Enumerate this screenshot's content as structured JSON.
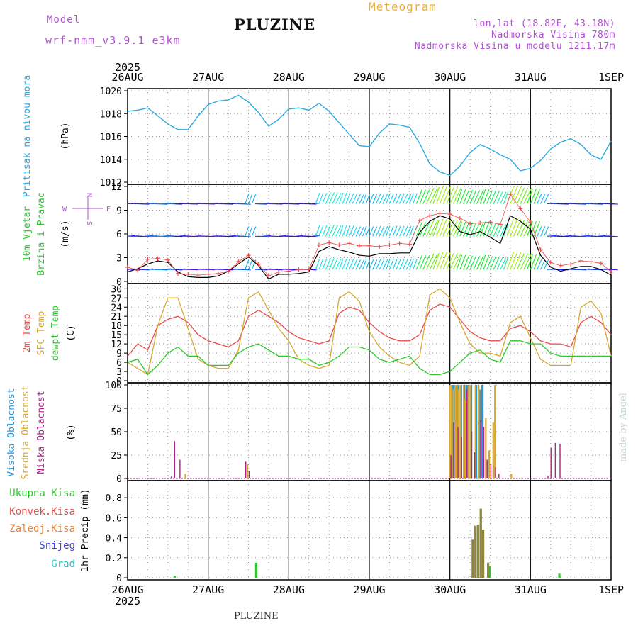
{
  "header": {
    "model_label": "Model",
    "model_value": "wrf-nmm_v3.9.1  e3km",
    "station": "PLUZINE",
    "meteogram_label": "Meteogram",
    "lonlat": "lon,lat (18.82E, 43.18N)",
    "elevation": "Nadmorska Visina 780m",
    "model_elevation": "Nadmorska Visina u modelu 1211.17m",
    "bottom_station": "PLUZINE",
    "credit": "made by Angel"
  },
  "colors": {
    "pressure": "#2aa8e0",
    "temp2m": "#e84c4c",
    "sfc_temp": "#d8a830",
    "dewpoint": "#2cc82c",
    "high_cloud": "#1e9ae0",
    "mid_cloud": "#d8a830",
    "low_cloud": "#b0208a",
    "total_precip": "#2cc82c",
    "conv_precip": "#e84c4c",
    "frozen_precip": "#f08030",
    "snow": "#4040e0",
    "hail": "#20c0c0",
    "wind_line": "#000000",
    "wind_gust": "#e84c4c",
    "model_purple": "#b44fd6"
  },
  "chart_data": [
    {
      "type": "line",
      "panel": "pressure",
      "ylabel": [
        "Pritisak na nivou mora",
        "(hPa)"
      ],
      "ylim": [
        1012,
        1020
      ],
      "yticks": [
        "1020",
        "1018",
        "1016",
        "1014",
        "1012"
      ],
      "ytick_values": [
        1020,
        1018,
        1016,
        1014,
        1012
      ],
      "xticks_top": [
        "26AUG",
        "27AUG",
        "28AUG",
        "29AUG",
        "30AUG",
        "31AUG",
        "1SEP"
      ],
      "year": "2025",
      "hours": [
        0,
        3,
        6,
        9,
        12,
        15,
        18,
        21,
        24,
        27,
        30,
        33,
        36,
        39,
        42,
        45,
        48,
        51,
        54,
        57,
        60,
        63,
        66,
        69,
        72,
        75,
        78,
        81,
        84,
        87,
        90,
        93,
        96,
        99,
        102,
        105,
        108,
        111,
        114,
        117,
        120,
        123,
        126,
        129,
        132,
        135,
        138,
        141,
        144
      ],
      "series": [
        {
          "values": [
            1018.2,
            1018.3,
            1018.5,
            1017.8,
            1017.1,
            1016.6,
            1016.6,
            1017.8,
            1018.8,
            1019.1,
            1019.2,
            1019.6,
            1019.0,
            1018.1,
            1016.9,
            1017.5,
            1018.4,
            1018.5,
            1018.3,
            1018.9,
            1018.2,
            1017.2,
            1016.2,
            1015.2,
            1015.1,
            1016.3,
            1017.1,
            1017.0,
            1016.8,
            1015.4,
            1013.6,
            1012.9,
            1012.6,
            1013.4,
            1014.6,
            1015.3,
            1014.9,
            1014.4,
            1014.0,
            1013.0,
            1013.2,
            1013.9,
            1014.9,
            1015.5,
            1015.8,
            1015.3,
            1014.4,
            1014.0,
            1015.6
          ]
        }
      ]
    },
    {
      "type": "line",
      "panel": "wind",
      "ylabel": [
        "10m Vjetar",
        "Brzina i Pravac",
        "(m/s)"
      ],
      "compass": {
        "w": "W",
        "e": "E",
        "n": "N",
        "s": "S"
      },
      "ylim": [
        0,
        12
      ],
      "yticks": [
        "12",
        "9",
        "6",
        "3",
        "0"
      ],
      "ytick_values": [
        12,
        9,
        6,
        3,
        0
      ],
      "hours": [
        0,
        3,
        6,
        9,
        12,
        15,
        18,
        21,
        24,
        27,
        30,
        33,
        36,
        39,
        42,
        45,
        48,
        51,
        54,
        57,
        60,
        63,
        66,
        69,
        72,
        75,
        78,
        81,
        84,
        87,
        90,
        93,
        96,
        99,
        102,
        105,
        108,
        111,
        114,
        117,
        120,
        123,
        126,
        129,
        132,
        135,
        138,
        141,
        144
      ],
      "series": [
        {
          "name": "speed",
          "values": [
            1.2,
            1.6,
            2.2,
            2.6,
            2.4,
            1.2,
            0.6,
            0.5,
            0.5,
            0.7,
            1.3,
            2.2,
            3.1,
            2.0,
            0.3,
            0.9,
            0.9,
            1.0,
            1.2,
            3.8,
            4.4,
            4.0,
            3.7,
            3.3,
            3.2,
            3.5,
            3.5,
            3.6,
            3.6,
            6.2,
            7.6,
            8.3,
            7.9,
            6.3,
            5.9,
            6.3,
            5.6,
            4.8,
            8.3,
            7.6,
            6.6,
            3.3,
            1.8,
            1.3,
            1.6,
            1.9,
            1.9,
            1.5,
            0.8
          ]
        },
        {
          "name": "gust",
          "values": [
            1.8,
            1.4,
            2.8,
            2.9,
            2.7,
            1.0,
            0.9,
            0.8,
            0.9,
            1.0,
            1.3,
            2.5,
            3.3,
            2.2,
            0.7,
            1.2,
            1.3,
            1.5,
            1.5,
            4.6,
            4.9,
            4.6,
            4.8,
            4.5,
            4.5,
            4.4,
            4.6,
            4.8,
            4.7,
            7.7,
            8.3,
            8.6,
            8.5,
            8.0,
            7.3,
            7.4,
            7.5,
            7.2,
            11.0,
            9.2,
            7.5,
            4.0,
            2.4,
            2.0,
            2.2,
            2.6,
            2.5,
            2.3,
            1.2
          ]
        }
      ]
    },
    {
      "type": "line",
      "panel": "temperature",
      "ylabel": [
        "2m Temp",
        "SFC Temp",
        "dewpt Temp",
        "(C)"
      ],
      "ylim": [
        0,
        31
      ],
      "yticks": [
        "30",
        "27",
        "24",
        "21",
        "18",
        "15",
        "12",
        "9",
        "6",
        "3",
        "0"
      ],
      "ytick_values": [
        30,
        27,
        24,
        21,
        18,
        15,
        12,
        9,
        6,
        3,
        0
      ],
      "hours": [
        0,
        3,
        6,
        9,
        12,
        15,
        18,
        21,
        24,
        27,
        30,
        33,
        36,
        39,
        42,
        45,
        48,
        51,
        54,
        57,
        60,
        63,
        66,
        69,
        72,
        75,
        78,
        81,
        84,
        87,
        90,
        93,
        96,
        99,
        102,
        105,
        108,
        111,
        114,
        117,
        120,
        123,
        126,
        129,
        132,
        135,
        138,
        141,
        144
      ],
      "series": [
        {
          "name": "2m Temp",
          "values": [
            8,
            12,
            10,
            18,
            20,
            21,
            19,
            15,
            13,
            12,
            11,
            13,
            21,
            23,
            21,
            19,
            16,
            14,
            13,
            12,
            13,
            22,
            24,
            23,
            19,
            16,
            14,
            13,
            13,
            15,
            23,
            25,
            24,
            20,
            16,
            14,
            13,
            13,
            17,
            18,
            16,
            13,
            12,
            12,
            11,
            19,
            21,
            19,
            15
          ]
        },
        {
          "name": "SFC Temp",
          "values": [
            6,
            4,
            2,
            18,
            27,
            27,
            17,
            7,
            5,
            4,
            4,
            10,
            27,
            29,
            23,
            17,
            13,
            7,
            5,
            4,
            5,
            27,
            29,
            26,
            16,
            11,
            8,
            6,
            5,
            8,
            28,
            30,
            27,
            19,
            12,
            9,
            9,
            8,
            19,
            21,
            14,
            7,
            5,
            5,
            5,
            24,
            26,
            22,
            8
          ]
        },
        {
          "name": "dewpt Temp",
          "values": [
            6,
            7,
            2,
            5,
            9,
            11,
            8,
            8,
            5,
            5,
            5,
            9,
            11,
            12,
            10,
            8,
            8,
            7,
            7,
            5,
            6,
            8,
            11,
            11,
            10,
            7,
            6,
            7,
            8,
            4,
            2,
            2,
            3,
            6,
            9,
            10,
            7,
            6,
            13,
            13,
            12,
            12,
            9,
            8,
            8,
            8,
            8,
            8,
            8
          ]
        }
      ]
    },
    {
      "type": "bar",
      "panel": "cloud",
      "ylabel": [
        "Visoka Oblacnost",
        "Srednja Oblacnost",
        "Niska Oblacnost",
        "(%)"
      ],
      "ylim": [
        0,
        100
      ],
      "yticks": [
        "100",
        "75",
        "50",
        "25",
        "0"
      ],
      "ytick_values": [
        100,
        75,
        50,
        25,
        0
      ],
      "series": [
        {
          "name": "Visoka Oblacnost",
          "x": [
            96.2,
            96.7,
            97.2,
            97.8,
            98.3,
            99.3,
            100.3,
            101.2,
            102.3,
            103.8,
            104.8,
            105.7,
            109.2
          ],
          "values": [
            25,
            100,
            100,
            100,
            100,
            100,
            100,
            100,
            100,
            100,
            95,
            100,
            15
          ]
        },
        {
          "name": "Srednja Oblacnost",
          "x": [
            17.2,
            35.7,
            96.0,
            96.5,
            97.0,
            97.6,
            98.1,
            98.6,
            99.1,
            100.1,
            100.6,
            101.6,
            102.1,
            103.6,
            104.6,
            106.7,
            107.7,
            108.9,
            109.4,
            114.3
          ],
          "values": [
            5,
            15,
            100,
            100,
            95,
            100,
            100,
            95,
            100,
            100,
            85,
            100,
            100,
            100,
            100,
            65,
            30,
            60,
            100,
            5
          ]
        },
        {
          "name": "Niska Oblacnost",
          "x": [
            13.0,
            14.0,
            15.6,
            35.2,
            36.2,
            96.3,
            97.1,
            98.4,
            99.5,
            101.0,
            102.5,
            103.4,
            105.2,
            106.1,
            107.1,
            108.2,
            109.6,
            110.6,
            125.2,
            126.1,
            127.4,
            128.8
          ],
          "values": [
            2,
            40,
            20,
            18,
            8,
            25,
            60,
            55,
            45,
            95,
            50,
            28,
            62,
            55,
            20,
            15,
            12,
            5,
            3,
            33,
            38,
            37
          ]
        }
      ]
    },
    {
      "type": "bar",
      "panel": "precip",
      "ylabel": [
        "1hr Precip (mm)"
      ],
      "legend": [
        "Ukupna Kisa",
        "Konvek.Kisa",
        "Zaledj.Kisa",
        "Snijeg",
        "Grad"
      ],
      "ylim": [
        0,
        0.95
      ],
      "yticks": [
        "0.8",
        "0.6",
        "0.4",
        "0.2",
        "0"
      ],
      "ytick_values": [
        0.8,
        0.6,
        0.4,
        0.2,
        0
      ],
      "xticks_bottom": [
        "26AUG",
        "27AUG",
        "28AUG",
        "29AUG",
        "30AUG",
        "31AUG",
        "1SEP"
      ],
      "year": "2025",
      "series": [
        {
          "name": "Ukupna Kisa",
          "x": [
            14.0,
            38.3,
            102.8,
            103.6,
            104.4,
            105.2,
            105.9,
            107.4,
            107.8,
            128.6
          ],
          "values": [
            0.02,
            0.15,
            0.38,
            0.52,
            0.53,
            0.69,
            0.48,
            0.15,
            0.12,
            0.04
          ]
        },
        {
          "name": "Konvek.Kisa",
          "x": [
            102.8,
            103.6,
            104.4,
            105.2,
            105.9,
            107.4
          ],
          "values": [
            0.38,
            0.52,
            0.53,
            0.69,
            0.48,
            0.15
          ]
        }
      ]
    }
  ]
}
